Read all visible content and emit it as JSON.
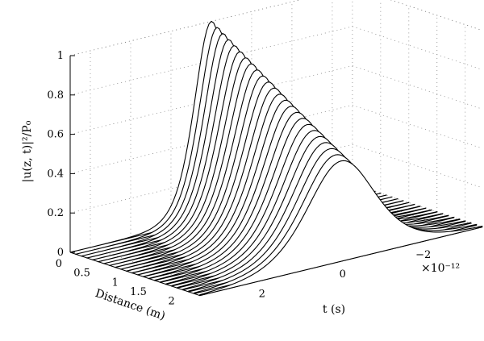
{
  "chart_data": {
    "type": "surface-waterfall",
    "zlabel": "|u(z, t)|²/P₀",
    "xlabel": "Distance (m)",
    "ylabel": "t (s)",
    "t_exponent_label": "×10⁻¹²",
    "distance_ticks": [
      0,
      0.5,
      1,
      1.5,
      2
    ],
    "distance_tick_labels": [
      "0",
      "0.5",
      "1",
      "1.5",
      "2"
    ],
    "time_ticks": [
      2,
      0,
      -2
    ],
    "time_tick_labels": [
      "2",
      "0",
      "−2"
    ],
    "power_ticks": [
      0,
      0.2,
      0.4,
      0.6,
      0.8,
      1
    ],
    "power_tick_labels": [
      "0",
      "0.2",
      "0.4",
      "0.6",
      "0.8",
      "1"
    ],
    "distance_range": [
      0,
      2.3
    ],
    "time_range_ps": [
      -3.5,
      3.5
    ],
    "power_range": [
      0,
      1
    ],
    "series": {
      "num_traces": 24,
      "distance_start": 0,
      "distance_end": 2.3,
      "peak_start": 1.0,
      "peak_end": 0.51,
      "fwhm_start_ps": 1.0,
      "fwhm_end_ps": 2.0,
      "pulse_shape": "sech²"
    },
    "grid": true
  }
}
